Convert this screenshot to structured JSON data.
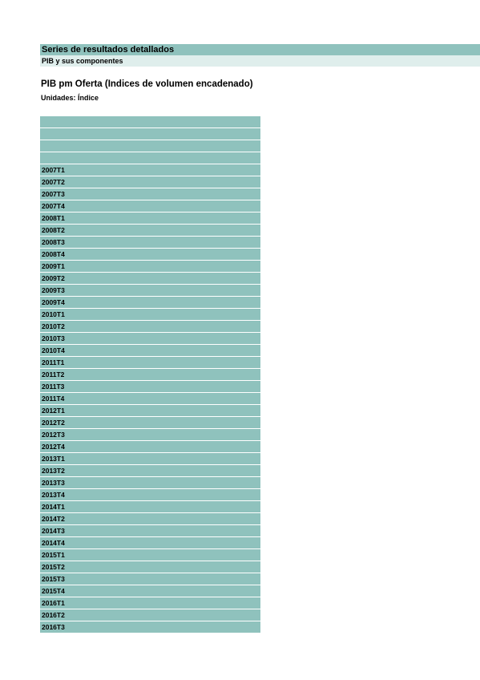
{
  "header": {
    "title": "Series de resultados detallados",
    "subtitle": "PIB y sus componentes"
  },
  "document": {
    "title": "PIB pm Oferta (Indices de volumen encadenado)",
    "units": "Unidades: Índice"
  },
  "table": {
    "header_rows": [
      "",
      "",
      "",
      ""
    ],
    "periods": [
      "2007T1",
      "2007T2",
      "2007T3",
      "2007T4",
      "2008T1",
      "2008T2",
      "2008T3",
      "2008T4",
      "2009T1",
      "2009T2",
      "2009T3",
      "2009T4",
      "2010T1",
      "2010T2",
      "2010T3",
      "2010T4",
      "2011T1",
      "2011T2",
      "2011T3",
      "2011T4",
      "2012T1",
      "2012T2",
      "2012T3",
      "2012T4",
      "2013T1",
      "2013T2",
      "2013T3",
      "2013T4",
      "2014T1",
      "2014T2",
      "2014T3",
      "2014T4",
      "2015T1",
      "2015T2",
      "2015T3",
      "2015T4",
      "2016T1",
      "2016T2",
      "2016T3"
    ]
  },
  "colors": {
    "band": "#8fc2bd",
    "band_light": "#dfeeec"
  }
}
